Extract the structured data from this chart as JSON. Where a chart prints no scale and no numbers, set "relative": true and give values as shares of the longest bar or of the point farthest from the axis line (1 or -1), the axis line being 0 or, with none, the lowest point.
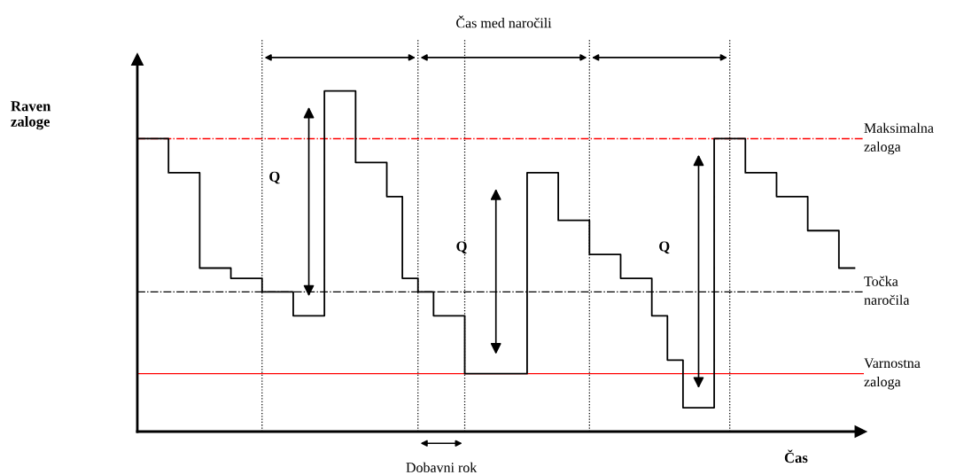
{
  "chart_data": {
    "type": "step",
    "relative": true,
    "xlabel": "Čas",
    "categories": [
      null,
      null,
      null,
      null,
      null,
      null,
      null,
      null,
      null,
      null,
      null,
      null,
      null,
      null,
      null,
      null,
      null,
      null,
      null,
      null,
      null,
      null,
      null,
      null,
      null,
      null,
      null,
      null,
      null,
      null,
      null,
      null,
      null,
      null,
      null,
      null,
      null,
      null,
      null,
      null,
      null,
      null,
      null,
      null,
      null,
      null,
      null
    ],
    "series": [
      {
        "color": "#000000",
        "values": [
          0.86,
          0.86,
          0.76,
          0.76,
          0.48,
          0.48,
          0.45,
          0.45,
          0.41,
          0.41,
          0.34,
          0.34,
          1.0,
          1.0,
          0.79,
          0.79,
          0.69,
          0.45,
          0.41,
          0.34,
          0.34,
          0.17,
          0.17,
          0.17,
          0.17,
          0.76,
          0.76,
          0.62,
          0.62,
          0.52,
          0.52,
          0.45,
          0.45,
          0.34,
          0.21,
          0.07,
          0.07,
          0.86,
          0.86,
          0.76,
          0.76,
          0.69,
          0.69,
          0.59,
          0.59,
          0.48,
          0.48
        ]
      }
    ],
    "ref_lines": [
      {
        "axis": "y",
        "value": 0.86,
        "label": "Maksimalna zaloga",
        "color": "#ff0000",
        "line_style": "dashdot"
      },
      {
        "axis": "y",
        "value": 0.41,
        "label": "Točka naročila",
        "color": "#000000",
        "line_style": "dashdot"
      },
      {
        "axis": "y",
        "value": 0.17,
        "label": "Varnostna zaloga",
        "color": "#ff0000",
        "line_style": "solid"
      }
    ],
    "annotations": [
      "Čas med naročili",
      "Dobavni rok",
      "Q",
      "Q",
      "Q",
      "Raven zaloge"
    ],
    "grid": "x",
    "line_style": "solid",
    "marker": "none"
  }
}
